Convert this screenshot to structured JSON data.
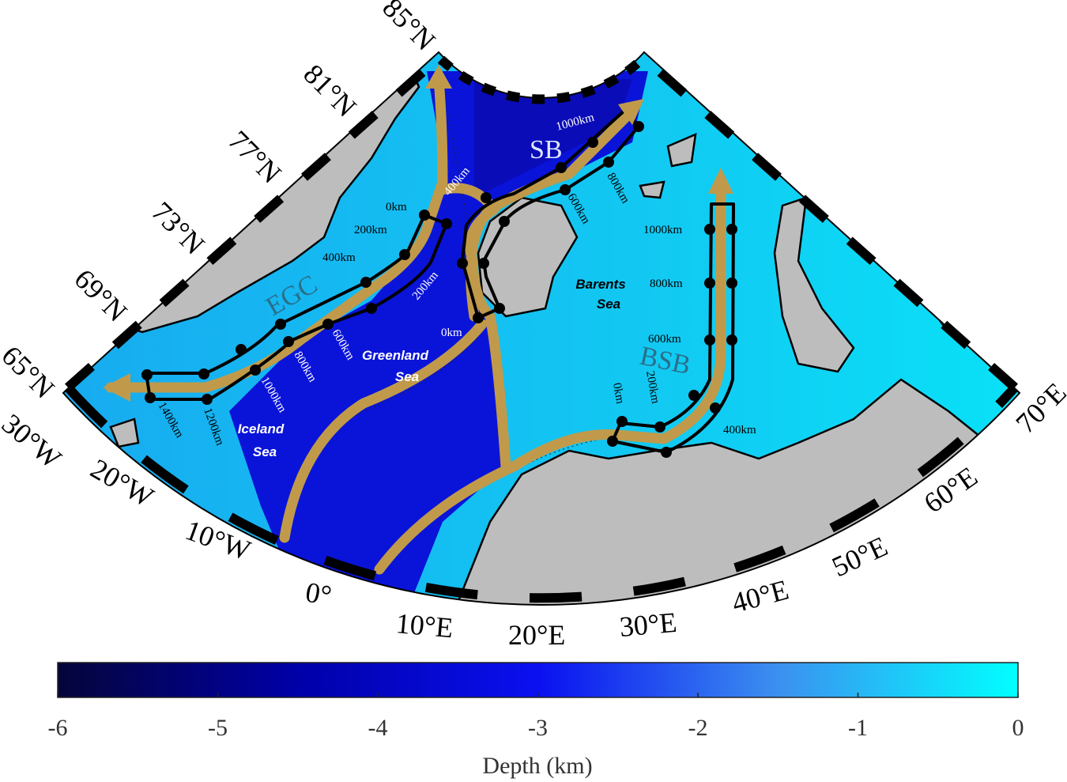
{
  "map": {
    "lat_labels": [
      "65°N",
      "69°N",
      "73°N",
      "77°N",
      "81°N",
      "85°N"
    ],
    "lon_labels": [
      "30°W",
      "20°W",
      "10°W",
      "0°",
      "10°E",
      "20°E",
      "30°E",
      "40°E",
      "50°E",
      "60°E",
      "70°E"
    ],
    "regions": {
      "greenland_sea": [
        "Greenland",
        "Sea"
      ],
      "iceland_sea": [
        "Iceland",
        "Sea"
      ],
      "barents_sea": [
        "Barents",
        "Sea"
      ]
    },
    "currents": {
      "egc": "EGC",
      "sb": "SB",
      "bsb": "BSB"
    },
    "egc_distances": [
      "0km",
      "200km",
      "400km",
      "600km",
      "800km",
      "1000km",
      "1200km",
      "1400km"
    ],
    "sb_distances": [
      "0km",
      "200km",
      "400km",
      "600km",
      "800km",
      "1000km"
    ],
    "bsb_distances": [
      "0km",
      "200km",
      "400km",
      "600km",
      "800km",
      "1000km"
    ]
  },
  "colorbar": {
    "label": "Depth (km)",
    "lim": [
      -6,
      0
    ],
    "ticks": [
      -6,
      -5,
      -4,
      -3,
      -2,
      -1,
      0
    ]
  }
}
